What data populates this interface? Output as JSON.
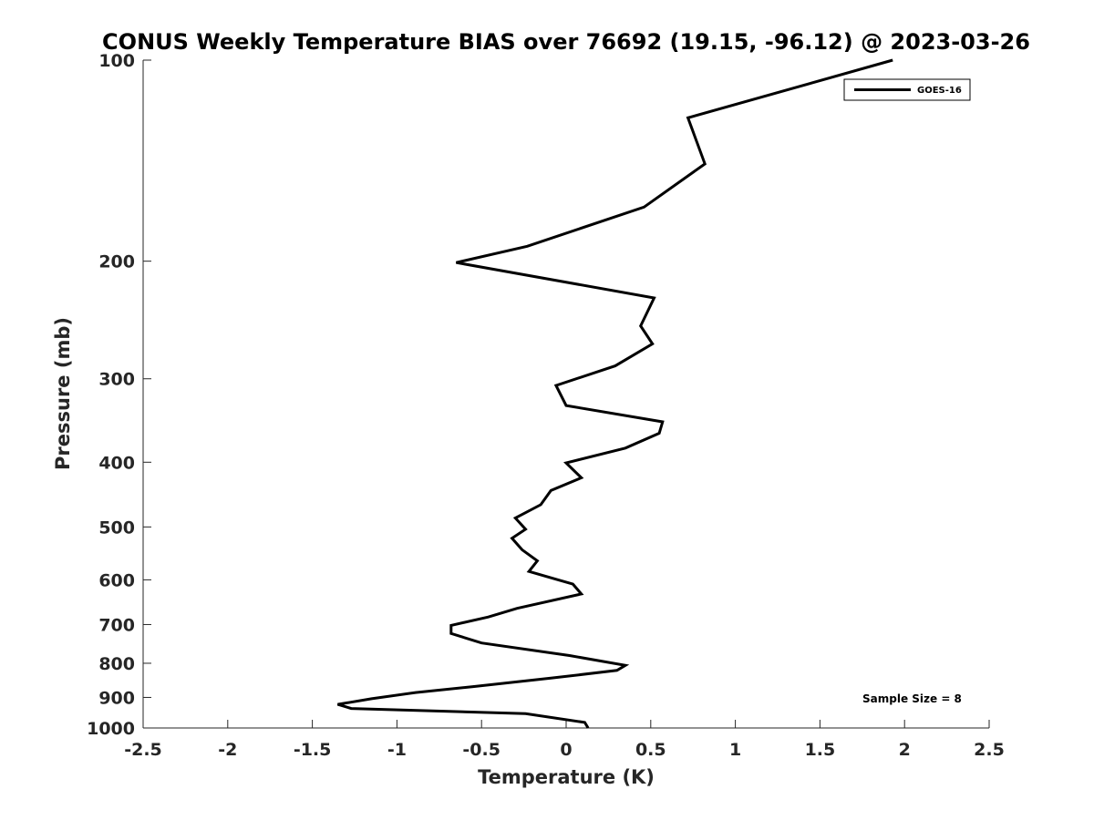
{
  "chart_data": {
    "type": "line",
    "title": "CONUS Weekly Temperature BIAS over 76692 (19.15, -96.12) @ 2023-03-26",
    "xlabel": "Temperature (K)",
    "ylabel": "Pressure (mb)",
    "xlim": [
      -2.5,
      2.5
    ],
    "ylim": [
      1000,
      100
    ],
    "yscale": "log",
    "y_reversed": true,
    "grid": false,
    "legend_position": "top-right",
    "xticks": [
      "-2.5",
      "-2",
      "-1.5",
      "-1",
      "-0.5",
      "0",
      "0.5",
      "1",
      "1.5",
      "2",
      "2.5"
    ],
    "xtick_values": [
      -2.5,
      -2,
      -1.5,
      -1,
      -0.5,
      0,
      0.5,
      1,
      1.5,
      2,
      2.5
    ],
    "yticks": [
      "100",
      "200",
      "300",
      "400",
      "500",
      "600",
      "700",
      "800",
      "900",
      "1000"
    ],
    "ytick_values": [
      100,
      200,
      300,
      400,
      500,
      600,
      700,
      800,
      900,
      1000
    ],
    "series": [
      {
        "name": "GOES-16",
        "color": "#000000",
        "points": [
          [
            1.93,
            100
          ],
          [
            0.72,
            122
          ],
          [
            0.82,
            143
          ],
          [
            0.46,
            166
          ],
          [
            -0.23,
            190
          ],
          [
            -0.65,
            201
          ],
          [
            0.52,
            227
          ],
          [
            0.44,
            250
          ],
          [
            0.51,
            266
          ],
          [
            0.29,
            287
          ],
          [
            -0.06,
            307
          ],
          [
            0.0,
            329
          ],
          [
            0.57,
            348
          ],
          [
            0.55,
            362
          ],
          [
            0.35,
            381
          ],
          [
            0.0,
            401
          ],
          [
            0.09,
            422
          ],
          [
            -0.09,
            441
          ],
          [
            -0.15,
            463
          ],
          [
            -0.3,
            485
          ],
          [
            -0.24,
            504
          ],
          [
            -0.32,
            520
          ],
          [
            -0.26,
            541
          ],
          [
            -0.17,
            562
          ],
          [
            -0.22,
            583
          ],
          [
            0.04,
            609
          ],
          [
            0.09,
            630
          ],
          [
            -0.29,
            662
          ],
          [
            -0.46,
            682
          ],
          [
            -0.68,
            702
          ],
          [
            -0.68,
            722
          ],
          [
            -0.5,
            746
          ],
          [
            0.02,
            779
          ],
          [
            0.35,
            806
          ],
          [
            0.3,
            820
          ],
          [
            -0.09,
            842
          ],
          [
            -0.55,
            867
          ],
          [
            -0.89,
            885
          ],
          [
            -1.15,
            904
          ],
          [
            -1.35,
            922
          ],
          [
            -1.27,
            935
          ],
          [
            -0.24,
            952
          ],
          [
            0.11,
            981
          ],
          [
            0.13,
            1000
          ]
        ]
      }
    ],
    "legend": [
      "GOES-16"
    ],
    "annotations": [
      "Sample Size = 8"
    ]
  }
}
